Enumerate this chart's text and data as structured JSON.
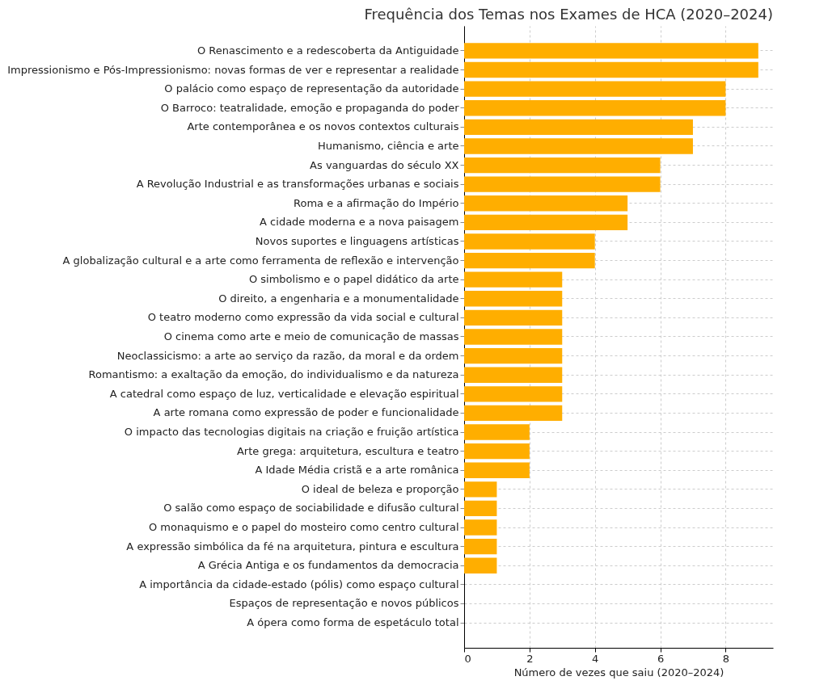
{
  "chart_data": {
    "type": "bar",
    "orientation": "horizontal",
    "title": "Frequência dos Temas nos Exames de HCA (2020–2024)",
    "xlabel": "Número de vezes que saiu (2020–2024)",
    "categories": [
      "O Renascimento e a redescoberta da Antiguidade",
      "Impressionismo e Pós-Impressionismo: novas formas de ver e representar a realidade",
      "O palácio como espaço de representação da autoridade",
      "O Barroco: teatralidade, emoção e propaganda do poder",
      "Arte contemporânea e os novos contextos culturais",
      "Humanismo, ciência e arte",
      "As vanguardas do século XX",
      "A Revolução Industrial e as transformações urbanas e sociais",
      "Roma e a afirmação do Império",
      "A cidade moderna e a nova paisagem",
      "Novos suportes e linguagens artísticas",
      "A globalização cultural e a arte como ferramenta de reflexão e intervenção",
      "O simbolismo e o papel didático da arte",
      "O direito, a engenharia e a monumentalidade",
      "O teatro moderno como expressão da vida social e cultural",
      "O cinema como arte e meio de comunicação de massas",
      "Neoclassicismo: a arte ao serviço da razão, da moral e da ordem",
      "Romantismo: a exaltação da emoção, do individualismo e da natureza",
      "A catedral como espaço de luz, verticalidade e elevação espiritual",
      "A arte romana como expressão de poder e funcionalidade",
      "O impacto das tecnologias digitais na criação e fruição artística",
      "Arte grega: arquitetura, escultura e teatro",
      "A Idade Média cristã e a arte românica",
      "O ideal de beleza e proporção",
      "O salão como espaço de sociabilidade e difusão cultural",
      "O monaquismo e o papel do mosteiro como centro cultural",
      "A expressão simbólica da fé na arquitetura, pintura e escultura",
      "A Grécia Antiga e os fundamentos da democracia",
      "A importância da cidade-estado (pólis) como espaço cultural",
      "Espaços de representação e novos públicos",
      "A ópera como forma de espetáculo total"
    ],
    "values": [
      9,
      9,
      8,
      8,
      7,
      7,
      6,
      6,
      5,
      5,
      4,
      4,
      3,
      3,
      3,
      3,
      3,
      3,
      3,
      3,
      2,
      2,
      2,
      1,
      1,
      1,
      1,
      1,
      0,
      0,
      0
    ],
    "color": "#ffae00",
    "xlim": [
      0,
      9.45
    ],
    "xticks": [
      0,
      2,
      4,
      6,
      8
    ],
    "grid": true
  }
}
